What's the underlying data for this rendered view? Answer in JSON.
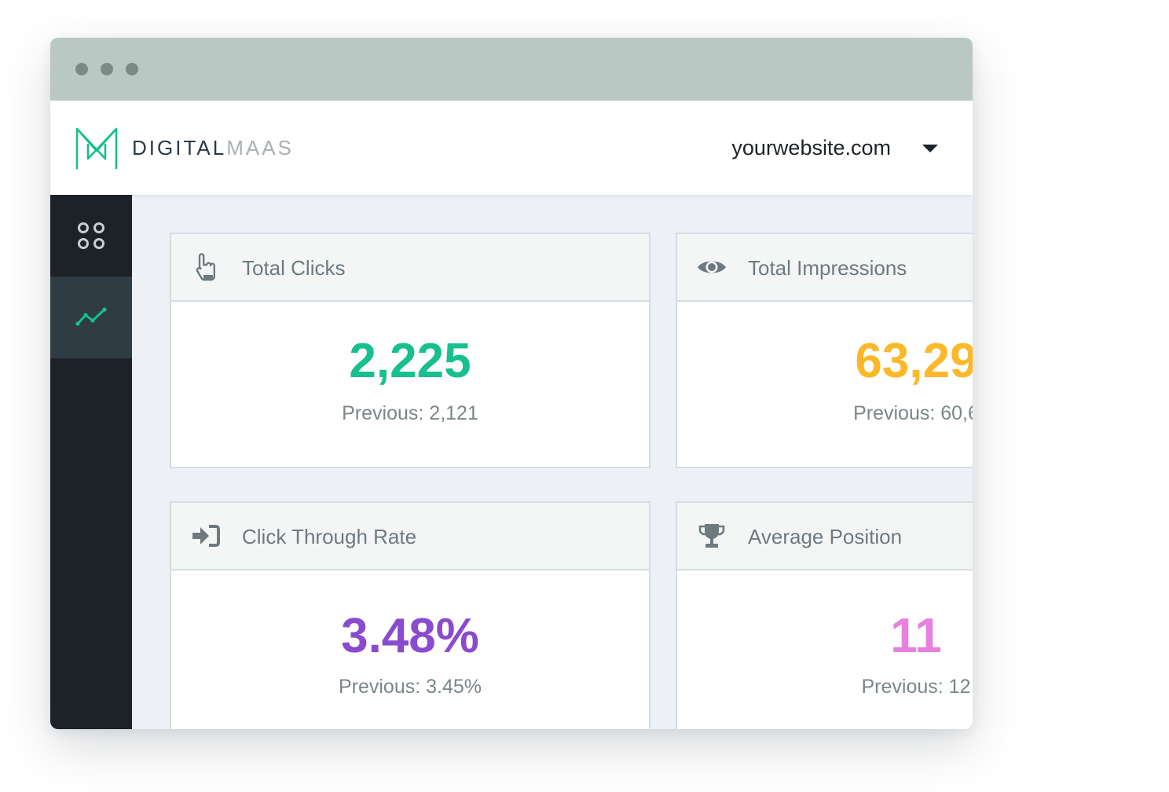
{
  "brand": {
    "name_primary": "DIGITAL",
    "name_secondary": "MAAS"
  },
  "header": {
    "site_selector": "yourwebsite.com"
  },
  "sidebar": {
    "items": [
      {
        "icon": "grid-apps-icon",
        "active": false
      },
      {
        "icon": "trend-line-icon",
        "active": true
      }
    ]
  },
  "cards": [
    {
      "title": "Total Clicks",
      "icon": "hand-pointer-icon",
      "value": "2,225",
      "previous_label": "Previous:",
      "previous_value": "2,121",
      "color": "#17c08e"
    },
    {
      "title": "Total Impressions",
      "icon": "eye-icon",
      "value": "63,29",
      "previous_label": "Previous:",
      "previous_value": "60,6",
      "color": "#fbb829"
    },
    {
      "title": "Click Through Rate",
      "icon": "sign-in-icon",
      "value": "3.48%",
      "previous_label": "Previous:",
      "previous_value": "3.45%",
      "color": "#8a4bce"
    },
    {
      "title": "Average Position",
      "icon": "trophy-icon",
      "value": "11",
      "previous_label": "Previous:",
      "previous_value": "12",
      "color": "#e880e0"
    }
  ],
  "colors": {
    "accent": "#17c08e",
    "sidebar": "#1c2228",
    "sidebar_active": "#303c44",
    "titlebar": "#b9c8c3"
  }
}
